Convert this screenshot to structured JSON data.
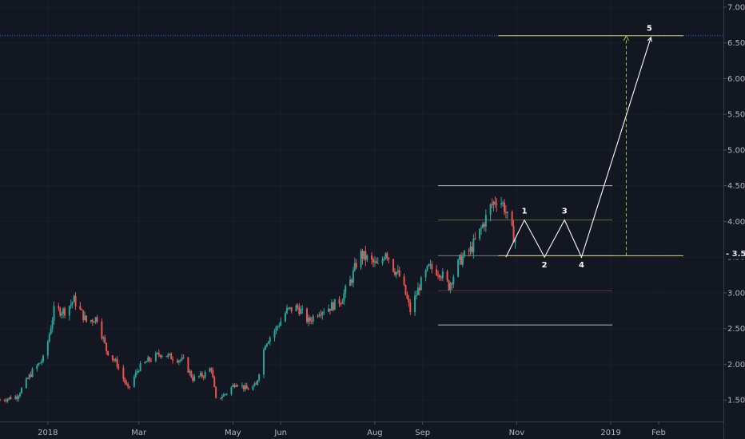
{
  "chart_data": {
    "type": "candlestick",
    "ylim": [
      1.2,
      7.1
    ],
    "yticks": [
      1.5,
      2.0,
      2.5,
      3.0,
      3.5,
      4.0,
      4.5,
      5.0,
      5.5,
      6.0,
      6.5,
      7.0
    ],
    "ytick_labels": [
      "1.50",
      "2.00",
      "2.50",
      "3.00",
      "3.50",
      "4.00",
      "4.50",
      "5.00",
      "5.50",
      "6.00",
      "6.50",
      "7.00"
    ],
    "xlim": [
      "2017-12-01",
      "2019-03-15"
    ],
    "xticks": [
      {
        "date": "2018-01-01",
        "label": "2018"
      },
      {
        "date": "2018-03-01",
        "label": "Mar"
      },
      {
        "date": "2018-05-01",
        "label": "May"
      },
      {
        "date": "2018-06-01",
        "label": "Jun"
      },
      {
        "date": "2018-08-01",
        "label": "Aug"
      },
      {
        "date": "2018-09-01",
        "label": "Sep"
      },
      {
        "date": "2018-11-01",
        "label": "Nov"
      },
      {
        "date": "2019-01-01",
        "label": "2019"
      },
      {
        "date": "2019-02-01",
        "label": "Feb"
      }
    ],
    "price_anchors": [
      [
        "2017-12-01",
        1.5
      ],
      [
        "2017-12-12",
        1.55
      ],
      [
        "2017-12-22",
        1.9
      ],
      [
        "2017-12-30",
        2.1
      ],
      [
        "2018-01-05",
        2.75
      ],
      [
        "2018-01-12",
        2.75
      ],
      [
        "2018-01-18",
        2.9
      ],
      [
        "2018-01-26",
        2.6
      ],
      [
        "2018-02-02",
        2.65
      ],
      [
        "2018-02-08",
        2.2
      ],
      [
        "2018-02-15",
        2.0
      ],
      [
        "2018-02-22",
        1.65
      ],
      [
        "2018-03-01",
        1.95
      ],
      [
        "2018-03-07",
        2.05
      ],
      [
        "2018-03-15",
        2.15
      ],
      [
        "2018-03-22",
        2.1
      ],
      [
        "2018-03-30",
        2.05
      ],
      [
        "2018-04-05",
        1.8
      ],
      [
        "2018-04-12",
        1.85
      ],
      [
        "2018-04-17",
        1.95
      ],
      [
        "2018-04-20",
        1.5
      ],
      [
        "2018-04-27",
        1.6
      ],
      [
        "2018-05-03",
        1.75
      ],
      [
        "2018-05-10",
        1.65
      ],
      [
        "2018-05-16",
        1.7
      ],
      [
        "2018-05-22",
        2.3
      ],
      [
        "2018-05-29",
        2.5
      ],
      [
        "2018-06-05",
        2.75
      ],
      [
        "2018-06-12",
        2.8
      ],
      [
        "2018-06-19",
        2.6
      ],
      [
        "2018-06-26",
        2.75
      ],
      [
        "2018-07-03",
        2.8
      ],
      [
        "2018-07-10",
        2.9
      ],
      [
        "2018-07-17",
        3.2
      ],
      [
        "2018-07-22",
        3.55
      ],
      [
        "2018-07-29",
        3.45
      ],
      [
        "2018-08-04",
        3.35
      ],
      [
        "2018-08-08",
        3.6
      ],
      [
        "2018-08-13",
        3.35
      ],
      [
        "2018-08-18",
        3.2
      ],
      [
        "2018-08-24",
        2.75
      ],
      [
        "2018-08-30",
        3.1
      ],
      [
        "2018-09-05",
        3.35
      ],
      [
        "2018-09-12",
        3.3
      ],
      [
        "2018-09-18",
        3.1
      ],
      [
        "2018-09-25",
        3.45
      ],
      [
        "2018-10-02",
        3.6
      ],
      [
        "2018-10-08",
        3.85
      ],
      [
        "2018-10-15",
        4.2
      ],
      [
        "2018-10-20",
        4.35
      ],
      [
        "2018-10-24",
        4.2
      ],
      [
        "2018-10-28",
        3.9
      ],
      [
        "2018-10-31",
        3.75
      ]
    ],
    "levels": [
      {
        "name": "",
        "value": 6.6,
        "color": "#2962ff",
        "style": "dotted",
        "from": "2017-12-01",
        "to": "2019-03-15"
      },
      {
        "name": "",
        "value": 6.6,
        "color": "#c8cf6e",
        "style": "solid",
        "from": "2018-10-20",
        "to": "2019-02-17"
      },
      {
        "name": "",
        "value": 4.5,
        "color": "#b2b5be",
        "style": "solid",
        "from": "2018-09-11",
        "to": "2019-01-02"
      },
      {
        "name": "",
        "value": 4.02,
        "color": "#5d6b3e",
        "style": "solid",
        "from": "2018-09-11",
        "to": "2019-01-02"
      },
      {
        "name": "",
        "value": 3.52,
        "color": "#787b86",
        "style": "solid",
        "from": "2018-09-11",
        "to": "2019-01-02"
      },
      {
        "name": "",
        "value": 3.52,
        "color": "#d8d66e",
        "style": "solid",
        "from": "2018-10-20",
        "to": "2019-02-17"
      },
      {
        "name": "",
        "value": 3.03,
        "color": "#5a3a3a",
        "style": "solid",
        "from": "2018-09-11",
        "to": "2019-01-02"
      },
      {
        "name": "",
        "value": 2.55,
        "color": "#b2b5be",
        "style": "solid",
        "from": "2018-09-11",
        "to": "2019-01-02"
      }
    ],
    "projection_path": [
      {
        "date": "2018-10-25",
        "value": 3.5,
        "label": ""
      },
      {
        "date": "2018-11-06",
        "value": 4.02,
        "label": "1"
      },
      {
        "date": "2018-11-19",
        "value": 3.5,
        "label": "2"
      },
      {
        "date": "2018-12-02",
        "value": 4.02,
        "label": "3"
      },
      {
        "date": "2018-12-13",
        "value": 3.5,
        "label": "4"
      },
      {
        "date": "2019-01-27",
        "value": 6.58,
        "label": "5"
      }
    ],
    "measure_arrow": {
      "date": "2019-01-11",
      "from": 3.52,
      "to": 6.6,
      "color": "#a8c23a"
    },
    "last_price": {
      "value": 3.55,
      "label": "3.55"
    }
  }
}
